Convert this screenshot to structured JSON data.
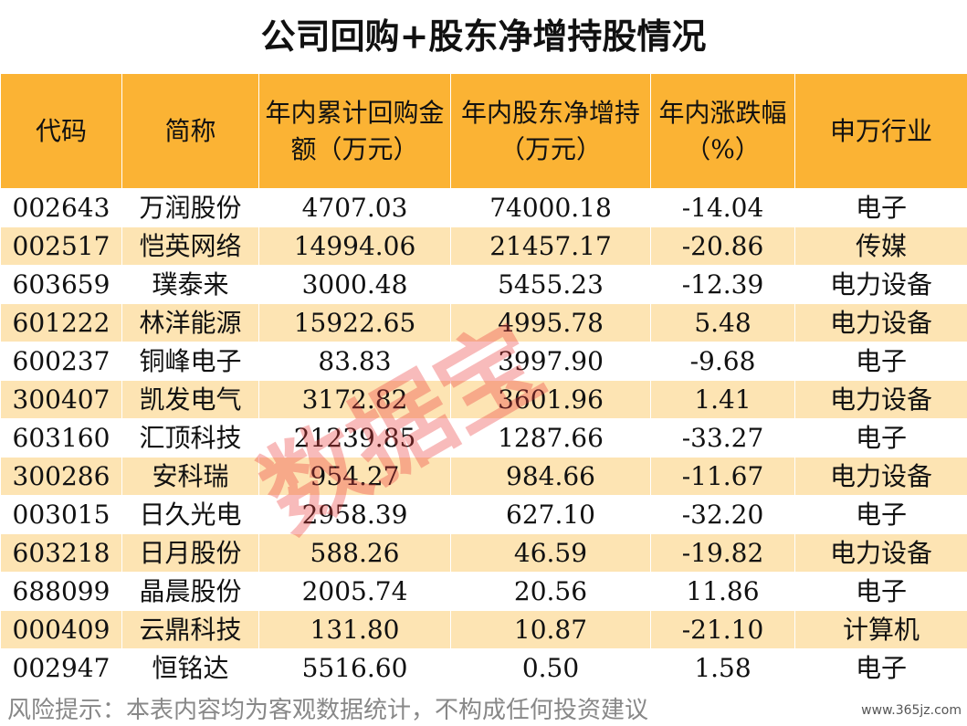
{
  "title": "公司回购+股东净增持股情况",
  "table": {
    "header": [
      "代码",
      "简称",
      "年内累计回购金额（万元）",
      "年内股东净增持（万元）",
      "年内涨跌幅（%）",
      "申万行业"
    ],
    "rows": [
      [
        "002643",
        "万润股份",
        "4707.03",
        "74000.18",
        "-14.04",
        "电子"
      ],
      [
        "002517",
        "恺英网络",
        "14994.06",
        "21457.17",
        "-20.86",
        "传媒"
      ],
      [
        "603659",
        "璞泰来",
        "3000.48",
        "5455.23",
        "-12.39",
        "电力设备"
      ],
      [
        "601222",
        "林洋能源",
        "15922.65",
        "4995.78",
        "5.48",
        "电力设备"
      ],
      [
        "600237",
        "铜峰电子",
        "83.83",
        "3997.90",
        "-9.68",
        "电子"
      ],
      [
        "300407",
        "凯发电气",
        "3172.82",
        "3601.96",
        "1.41",
        "电力设备"
      ],
      [
        "603160",
        "汇顶科技",
        "21239.85",
        "1287.66",
        "-33.27",
        "电子"
      ],
      [
        "300286",
        "安科瑞",
        "954.27",
        "984.66",
        "-11.67",
        "电力设备"
      ],
      [
        "003015",
        "日久光电",
        "2958.39",
        "627.10",
        "-32.20",
        "电子"
      ],
      [
        "603218",
        "日月股份",
        "588.26",
        "46.59",
        "-19.82",
        "电力设备"
      ],
      [
        "688099",
        "晶晨股份",
        "2005.74",
        "20.56",
        "11.86",
        "电子"
      ],
      [
        "000409",
        "云鼎科技",
        "131.80",
        "10.87",
        "-21.10",
        "计算机"
      ],
      [
        "002947",
        "恒铭达",
        "5516.60",
        "0.50",
        "1.58",
        "电子"
      ]
    ]
  },
  "footer": {
    "note": "风险提示：本表内容均为客观数据统计，不构成任何投资建议",
    "site": "www.365jz.com"
  },
  "watermark": "数据宝"
}
